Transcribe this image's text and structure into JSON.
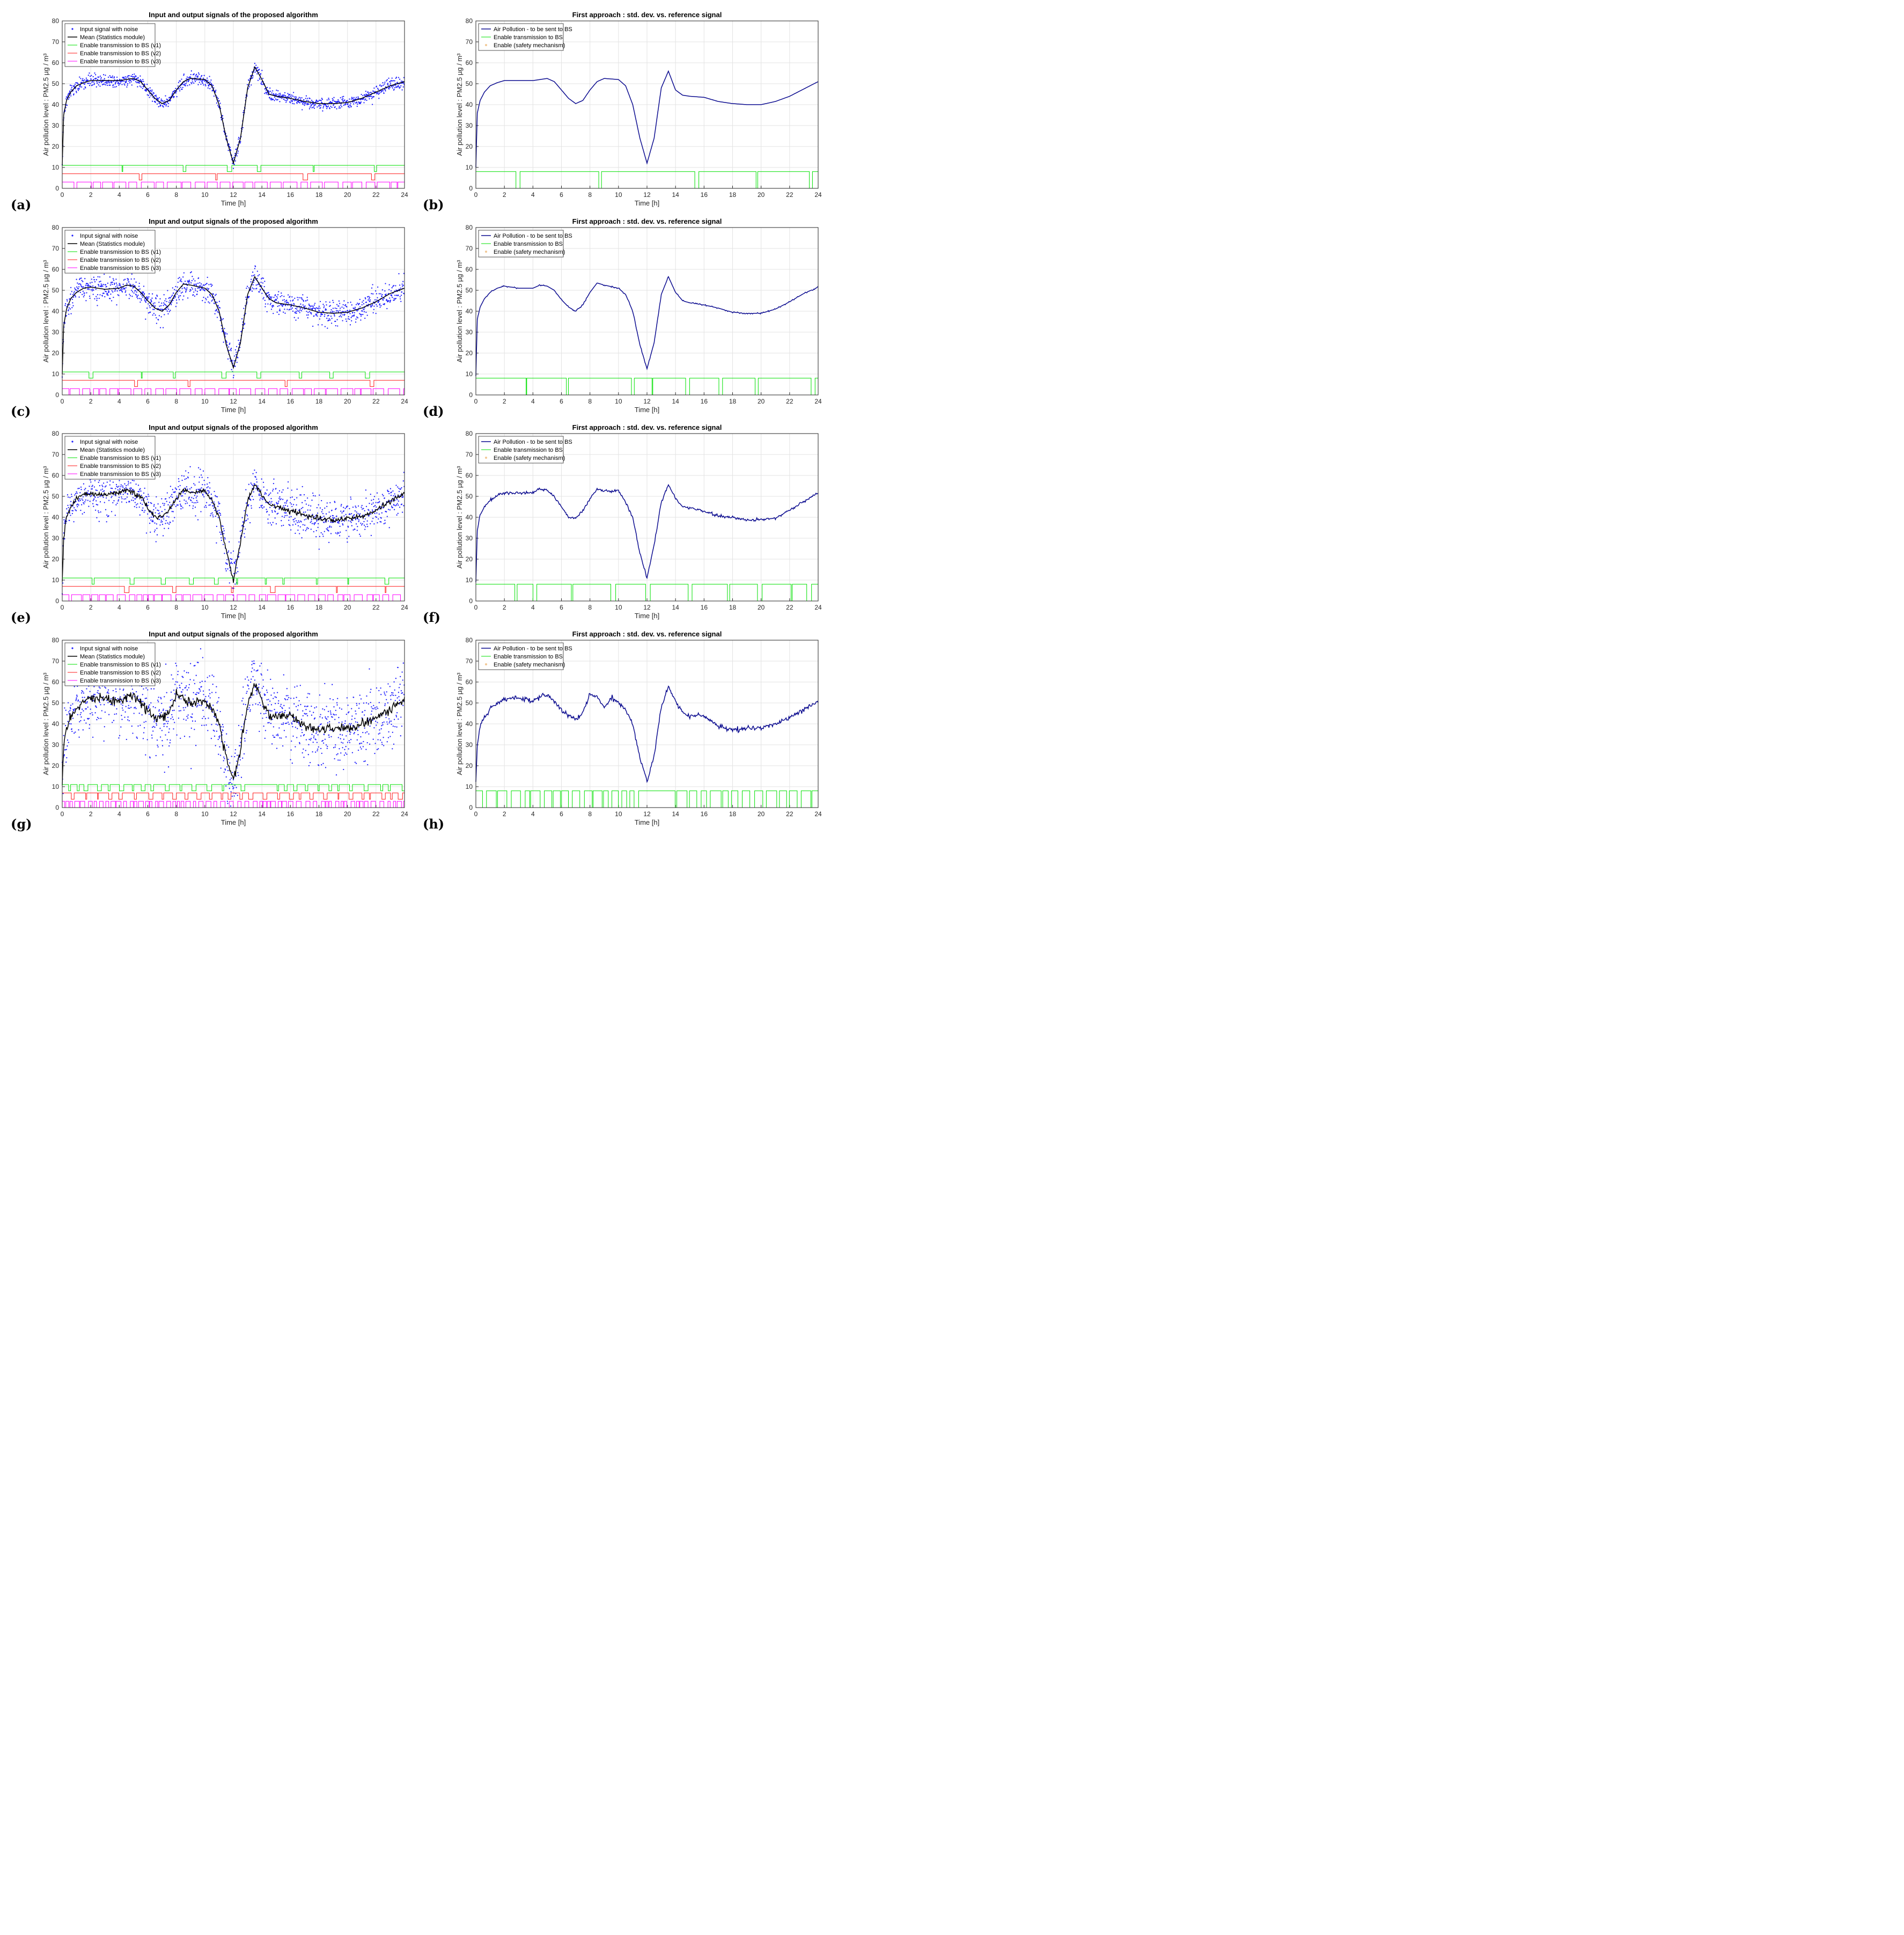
{
  "colors": {
    "noise": "#1f1fff",
    "mean": "#000000",
    "v1": "#00e000",
    "v2": "#ff1a1a",
    "v3": "#ff00ff",
    "pollution": "#0b0b8f",
    "safety": "#f2c894",
    "grid": "#e3e3e3"
  },
  "chart_data": [
    {
      "panel": "(a)",
      "type": "line",
      "title": "Input and output signals of the proposed algorithm",
      "xlabel": "Time [h]",
      "ylabel": "Air pollution level : PM2.5 µg / m³",
      "xlim": [
        0,
        24
      ],
      "ylim": [
        0,
        80
      ],
      "xticks": [
        0,
        2,
        4,
        6,
        8,
        10,
        12,
        14,
        16,
        18,
        20,
        22,
        24
      ],
      "yticks": [
        0,
        10,
        20,
        30,
        40,
        50,
        60,
        70,
        80
      ],
      "legend_position": "top-left",
      "noise_level": 1.5,
      "series": [
        {
          "name": "Input signal with noise",
          "kind": "scatter"
        },
        {
          "name": "Mean (Statistics module)",
          "kind": "line"
        },
        {
          "name": "Enable transmission to BS (v1)",
          "kind": "step",
          "levels": [
            8,
            11
          ]
        },
        {
          "name": "Enable transmission to BS (v2)",
          "kind": "step",
          "levels": [
            4,
            7
          ]
        },
        {
          "name": "Enable transmission to BS (v3)",
          "kind": "step",
          "levels": [
            0,
            3
          ]
        }
      ],
      "mean_curve": {
        "x": [
          0,
          0.1,
          0.3,
          0.6,
          1,
          1.5,
          2,
          3,
          4,
          5,
          5.5,
          6,
          6.5,
          7,
          7.5,
          8,
          8.5,
          9,
          10,
          10.5,
          11,
          11.5,
          12,
          12.5,
          13,
          13.5,
          14,
          14.5,
          15,
          16,
          17,
          18,
          19,
          20,
          21,
          22,
          23,
          24
        ],
        "y": [
          11,
          35,
          42,
          46,
          49,
          50.5,
          51.5,
          51.5,
          51.5,
          52.5,
          51,
          47,
          43,
          40.5,
          42,
          47,
          51,
          52.5,
          52,
          49,
          40,
          24,
          12,
          24,
          48,
          58,
          52,
          45,
          44,
          43,
          41.5,
          40.5,
          40.5,
          41,
          43,
          46,
          49,
          51
        ]
      }
    },
    {
      "panel": "(b)",
      "type": "line",
      "title": "First approach : std. dev. vs. reference signal",
      "xlabel": "Time [h]",
      "ylabel": "Air pollution level : PM2.5 µg / m³",
      "xlim": [
        0,
        24
      ],
      "ylim": [
        0,
        80
      ],
      "xticks": [
        0,
        2,
        4,
        6,
        8,
        10,
        12,
        14,
        16,
        18,
        20,
        22,
        24
      ],
      "yticks": [
        0,
        10,
        20,
        30,
        40,
        50,
        60,
        70,
        80
      ],
      "legend_position": "top-left",
      "series": [
        {
          "name": "Air Pollution - to be sent to BS",
          "kind": "line"
        },
        {
          "name": "Enable transmission to BS",
          "kind": "step",
          "levels": [
            0,
            8
          ]
        },
        {
          "name": "Enable (safety mechanism)",
          "kind": "marker"
        }
      ],
      "curve": {
        "x": [
          0,
          0.1,
          0.3,
          0.6,
          1,
          1.5,
          2,
          3,
          4,
          5,
          5.5,
          6,
          6.5,
          7,
          7.5,
          8,
          8.5,
          9,
          10,
          10.5,
          11,
          11.5,
          12,
          12.5,
          13,
          13.5,
          14,
          14.5,
          15,
          16,
          17,
          18,
          19,
          20,
          21,
          22,
          23,
          24
        ],
        "y": [
          10,
          36,
          42,
          46,
          49,
          50.5,
          51.5,
          51.5,
          51.5,
          52.5,
          51,
          47,
          43,
          40.5,
          42,
          47,
          51,
          52.5,
          52,
          49,
          40,
          24,
          12,
          24,
          48,
          56,
          47,
          44.5,
          44,
          43.5,
          41.5,
          40.5,
          40,
          40,
          41.5,
          44,
          47.5,
          51
        ]
      }
    },
    {
      "panel": "(c)",
      "type": "line",
      "title": "Input and output signals of the proposed algorithm",
      "xlabel": "Time [h]",
      "ylabel": "Air pollution level : PM2.5 µg / m³",
      "xlim": [
        0,
        24
      ],
      "ylim": [
        0,
        80
      ],
      "xticks": [
        0,
        2,
        4,
        6,
        8,
        10,
        12,
        14,
        16,
        18,
        20,
        22,
        24
      ],
      "yticks": [
        0,
        10,
        20,
        30,
        40,
        50,
        60,
        70,
        80
      ],
      "legend_position": "top-left",
      "noise_level": 3,
      "series": [
        {
          "name": "Input signal with noise",
          "kind": "scatter"
        },
        {
          "name": "Mean (Statistics module)",
          "kind": "line"
        },
        {
          "name": "Enable transmission to BS (v1)",
          "kind": "step",
          "levels": [
            8,
            11
          ]
        },
        {
          "name": "Enable transmission to BS (v2)",
          "kind": "step",
          "levels": [
            4,
            7
          ]
        },
        {
          "name": "Enable transmission to BS (v3)",
          "kind": "step",
          "levels": [
            0,
            3
          ]
        }
      ],
      "mean_curve": {
        "x": [
          0,
          0.1,
          0.3,
          0.6,
          1,
          1.5,
          2,
          3,
          4,
          4.5,
          5,
          5.5,
          6,
          6.5,
          7,
          7.5,
          8,
          8.5,
          9,
          10,
          10.5,
          11,
          11.5,
          12,
          12.5,
          13,
          13.5,
          14,
          14.5,
          15,
          16,
          17,
          18,
          19,
          20,
          21,
          22,
          23,
          24
        ],
        "y": [
          10,
          33,
          41,
          46,
          49,
          51,
          51.5,
          50.5,
          51,
          52.5,
          52,
          49,
          45,
          41.5,
          40,
          43,
          49,
          53,
          52.5,
          51,
          48,
          40,
          24,
          13,
          25,
          48,
          56.5,
          51,
          46,
          44,
          43,
          41.5,
          39.5,
          39,
          39.5,
          41.5,
          44.5,
          48.5,
          51
        ]
      }
    },
    {
      "panel": "(d)",
      "type": "line",
      "title": "First approach : std. dev. vs. reference signal",
      "xlabel": "Time [h]",
      "ylabel": "Air pollution level : PM2.5 µg / m³",
      "xlim": [
        0,
        24
      ],
      "ylim": [
        0,
        80
      ],
      "xticks": [
        0,
        2,
        4,
        6,
        8,
        10,
        12,
        14,
        16,
        18,
        20,
        22,
        24
      ],
      "yticks": [
        0,
        10,
        20,
        30,
        40,
        50,
        60,
        70,
        80
      ],
      "legend_position": "top-left",
      "series": [
        {
          "name": "Air Pollution - to be sent to BS",
          "kind": "line"
        },
        {
          "name": "Enable transmission to BS",
          "kind": "step",
          "levels": [
            0,
            8
          ]
        },
        {
          "name": "Enable (safety mechanism)",
          "kind": "marker"
        }
      ],
      "curve": {
        "x": [
          0,
          0.1,
          0.3,
          0.6,
          1,
          1.5,
          2,
          3,
          4,
          4.5,
          5,
          5.5,
          6,
          6.5,
          7,
          7.5,
          8,
          8.5,
          9,
          10,
          10.5,
          11,
          11.5,
          12,
          12.5,
          13,
          13.5,
          14,
          14.5,
          15,
          16,
          17,
          18,
          19,
          20,
          21,
          22,
          23,
          24
        ],
        "y": [
          9,
          36,
          42,
          46,
          49,
          51,
          52,
          51,
          51,
          52.5,
          52,
          50,
          45.5,
          42,
          40,
          43,
          49,
          53.5,
          52.5,
          51,
          48,
          40,
          24,
          12.5,
          25,
          48,
          56.5,
          49,
          45,
          44,
          43,
          41.5,
          39.5,
          39,
          39,
          41,
          44.5,
          48.5,
          51.5
        ]
      }
    },
    {
      "panel": "(e)",
      "type": "line",
      "title": "Input and output signals of the proposed algorithm",
      "xlabel": "Time [h]",
      "ylabel": "Air pollution level : PM2.5 µg / m³",
      "xlim": [
        0,
        24
      ],
      "ylim": [
        0,
        80
      ],
      "xticks": [
        0,
        2,
        4,
        6,
        8,
        10,
        12,
        14,
        16,
        18,
        20,
        22,
        24
      ],
      "yticks": [
        0,
        10,
        20,
        30,
        40,
        50,
        60,
        70,
        80
      ],
      "legend_position": "top-left",
      "noise_level": 5,
      "series": [
        {
          "name": "Input signal with noise",
          "kind": "scatter"
        },
        {
          "name": "Mean (Statistics module)",
          "kind": "line"
        },
        {
          "name": "Enable transmission to BS (v1)",
          "kind": "step",
          "levels": [
            8,
            11
          ]
        },
        {
          "name": "Enable transmission to BS (v2)",
          "kind": "step",
          "levels": [
            4,
            7
          ]
        },
        {
          "name": "Enable transmission to BS (v3)",
          "kind": "step",
          "levels": [
            0,
            3
          ]
        }
      ],
      "mean_curve": {
        "x": [
          0,
          0.1,
          0.3,
          0.6,
          1,
          1.5,
          2,
          3,
          4,
          4.5,
          5,
          5.5,
          6,
          6.5,
          7,
          7.5,
          8,
          8.5,
          9,
          10,
          10.5,
          11,
          11.5,
          12,
          12.5,
          13,
          13.5,
          14,
          14.5,
          15,
          16,
          17,
          18,
          19,
          20,
          21,
          22,
          23,
          24
        ],
        "y": [
          9,
          30,
          40,
          45,
          49,
          51,
          51,
          51,
          52,
          53,
          52,
          50,
          44.5,
          40,
          40,
          43.5,
          49,
          53.5,
          52,
          52.5,
          48,
          40,
          24,
          10,
          28,
          48,
          55.5,
          50.5,
          46,
          45,
          43,
          41,
          39.5,
          38.5,
          39.5,
          40,
          43.5,
          47.5,
          51.5
        ]
      }
    },
    {
      "panel": "(f)",
      "type": "line",
      "title": "First approach : std. dev. vs. reference signal",
      "xlabel": "Time [h]",
      "ylabel": "Air pollution level : PM2.5 µg / m³",
      "xlim": [
        0,
        24
      ],
      "ylim": [
        0,
        80
      ],
      "xticks": [
        0,
        2,
        4,
        6,
        8,
        10,
        12,
        14,
        16,
        18,
        20,
        22,
        24
      ],
      "yticks": [
        0,
        10,
        20,
        30,
        40,
        50,
        60,
        70,
        80
      ],
      "legend_position": "top-left",
      "series": [
        {
          "name": "Air Pollution - to be sent to BS",
          "kind": "line"
        },
        {
          "name": "Enable transmission to BS",
          "kind": "step",
          "levels": [
            0,
            8
          ]
        },
        {
          "name": "Enable (safety mechanism)",
          "kind": "marker"
        }
      ],
      "curve": {
        "x": [
          0,
          0.1,
          0.3,
          0.6,
          1,
          1.5,
          2,
          3,
          4,
          4.5,
          5,
          5.5,
          6,
          6.5,
          7,
          7.5,
          8,
          8.5,
          9,
          10,
          10.5,
          11,
          11.5,
          12,
          12.5,
          13,
          13.5,
          14,
          14.5,
          15,
          16,
          17,
          18,
          19,
          20,
          21,
          22,
          23,
          24
        ],
        "y": [
          9,
          34,
          41,
          45,
          48,
          50.5,
          51.5,
          51.5,
          52,
          53.5,
          53,
          50,
          45,
          40,
          39.5,
          43,
          49,
          53.5,
          52.5,
          53,
          47,
          40,
          23,
          11,
          27,
          47,
          55.5,
          49,
          45,
          44.5,
          43,
          40.5,
          40,
          38.5,
          39,
          39.5,
          43.5,
          47.5,
          51.5
        ]
      }
    },
    {
      "panel": "(g)",
      "type": "line",
      "title": "Input and output signals of the proposed algorithm",
      "xlabel": "Time [h]",
      "ylabel": "Air pollution level : PM2.5 µg / m³",
      "xlim": [
        0,
        24
      ],
      "ylim": [
        0,
        80
      ],
      "xticks": [
        0,
        2,
        4,
        6,
        8,
        10,
        12,
        14,
        16,
        18,
        20,
        22,
        24
      ],
      "yticks": [
        0,
        10,
        20,
        30,
        40,
        50,
        60,
        70,
        80
      ],
      "legend_position": "top-left",
      "noise_level": 9,
      "series": [
        {
          "name": "Input signal with noise",
          "kind": "scatter"
        },
        {
          "name": "Mean (Statistics module)",
          "kind": "line"
        },
        {
          "name": "Enable transmission to BS (v1)",
          "kind": "step",
          "levels": [
            8,
            11
          ]
        },
        {
          "name": "Enable transmission to BS (v2)",
          "kind": "step",
          "levels": [
            4,
            7
          ]
        },
        {
          "name": "Enable transmission to BS (v3)",
          "kind": "step",
          "levels": [
            0,
            3
          ]
        }
      ],
      "mean_curve": {
        "x": [
          0,
          0.1,
          0.3,
          0.6,
          1,
          1.5,
          2,
          3,
          4,
          4.5,
          5,
          5.5,
          6,
          6.5,
          7,
          7.5,
          8,
          8.5,
          9,
          9.5,
          10,
          10.5,
          11,
          11.5,
          12,
          12.5,
          13,
          13.5,
          14,
          14.5,
          15,
          16,
          17,
          18,
          19,
          20,
          21,
          22,
          23,
          24
        ],
        "y": [
          12,
          30,
          38,
          43,
          47,
          50,
          52,
          52,
          51,
          53,
          54,
          50,
          46,
          43,
          42,
          45,
          54,
          53,
          49,
          52,
          50,
          47,
          40,
          24,
          13,
          27,
          50,
          59,
          51,
          44,
          44,
          44,
          39,
          37,
          38,
          38,
          40,
          43,
          47,
          52
        ]
      }
    },
    {
      "panel": "(h)",
      "type": "line",
      "title": "First approach : std. dev. vs. reference signal",
      "xlabel": "Time [h]",
      "ylabel": "Air pollution level : PM2.5 µg / m³",
      "xlim": [
        0,
        24
      ],
      "ylim": [
        0,
        80
      ],
      "xticks": [
        0,
        2,
        4,
        6,
        8,
        10,
        12,
        14,
        16,
        18,
        20,
        22,
        24
      ],
      "yticks": [
        0,
        10,
        20,
        30,
        40,
        50,
        60,
        70,
        80
      ],
      "legend_position": "top-left",
      "series": [
        {
          "name": "Air Pollution - to be sent to BS",
          "kind": "line"
        },
        {
          "name": "Enable transmission to BS",
          "kind": "step",
          "levels": [
            0,
            8
          ]
        },
        {
          "name": "Enable (safety mechanism)",
          "kind": "marker"
        }
      ],
      "curve": {
        "x": [
          0,
          0.1,
          0.3,
          0.6,
          1,
          1.5,
          2,
          3,
          4,
          4.5,
          5,
          5.5,
          6,
          6.5,
          7,
          7.5,
          8,
          8.5,
          9,
          9.5,
          10,
          10.5,
          11,
          11.5,
          12,
          12.5,
          13,
          13.5,
          14,
          14.5,
          15,
          16,
          17,
          18,
          19,
          20,
          21,
          22,
          23,
          24
        ],
        "y": [
          12,
          30,
          39,
          43,
          47,
          50,
          52,
          52.5,
          51,
          53,
          54,
          50.5,
          47,
          44,
          42,
          45.5,
          54.5,
          53,
          48,
          52,
          50,
          47,
          40,
          24,
          12,
          25,
          48,
          58,
          51,
          45,
          44,
          43.5,
          39,
          37,
          38,
          38,
          40,
          43,
          47,
          51
        ]
      }
    }
  ]
}
